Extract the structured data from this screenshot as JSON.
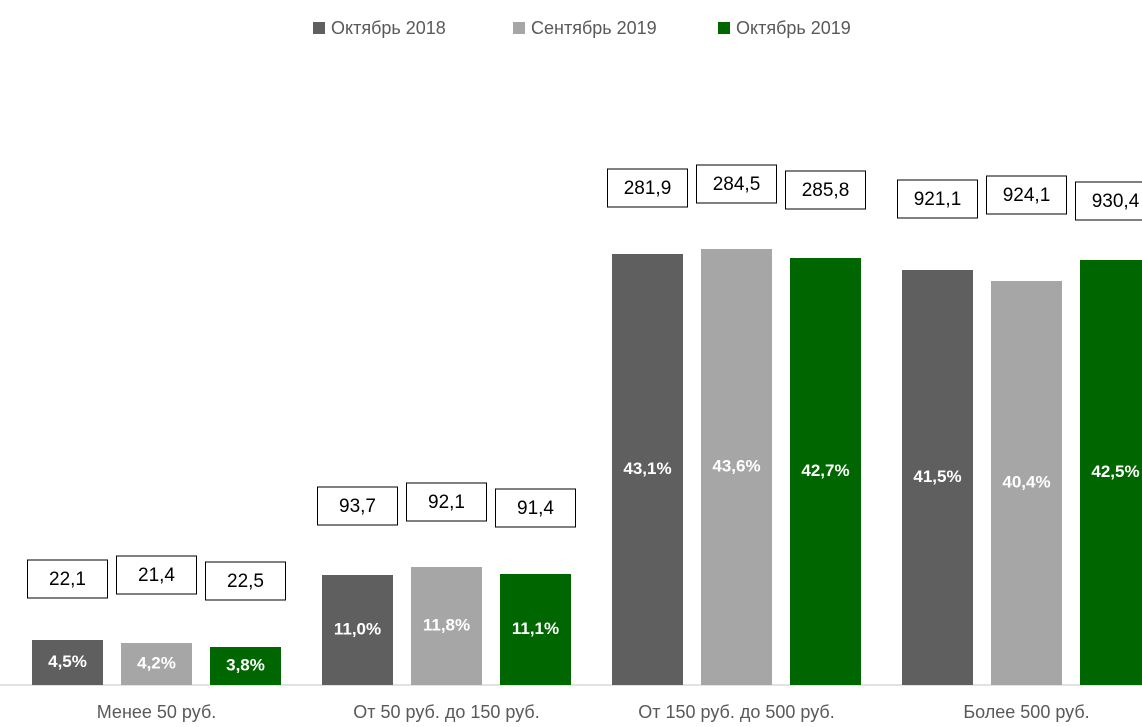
{
  "chart_data": {
    "type": "bar",
    "categories": [
      "Менее 50 руб.",
      "От 50 руб. до 150 руб.",
      "От 150 руб. до 500 руб.",
      "Более 500 руб."
    ],
    "series": [
      {
        "name": "Октябрь 2018",
        "color": "#5f5f5f",
        "values": [
          4.5,
          11.0,
          43.1,
          41.5
        ],
        "value_labels": [
          "4,5%",
          "11,0%",
          "43,1%",
          "41,5%"
        ],
        "amounts": [
          22.1,
          93.7,
          281.9,
          921.1
        ],
        "amount_labels": [
          "22,1",
          "93,7",
          "281,9",
          "921,1"
        ]
      },
      {
        "name": "Сентябрь 2019",
        "color": "#a6a6a6",
        "values": [
          4.2,
          11.8,
          43.6,
          40.4
        ],
        "value_labels": [
          "4,2%",
          "11,8%",
          "43,6%",
          "40,4%"
        ],
        "amounts": [
          21.4,
          92.1,
          284.5,
          924.1
        ],
        "amount_labels": [
          "21,4",
          "92,1",
          "284,5",
          "924,1"
        ]
      },
      {
        "name": "Октябрь 2019",
        "color": "#006600",
        "values": [
          3.8,
          11.1,
          42.7,
          42.5
        ],
        "value_labels": [
          "3,8%",
          "11,1%",
          "42,7%",
          "42,5%"
        ],
        "amounts": [
          22.5,
          91.4,
          285.8,
          930.4
        ],
        "amount_labels": [
          "22,5",
          "91,4",
          "285,8",
          "930,4"
        ]
      }
    ],
    "ylim": [
      0,
      45
    ],
    "legend": "top"
  }
}
